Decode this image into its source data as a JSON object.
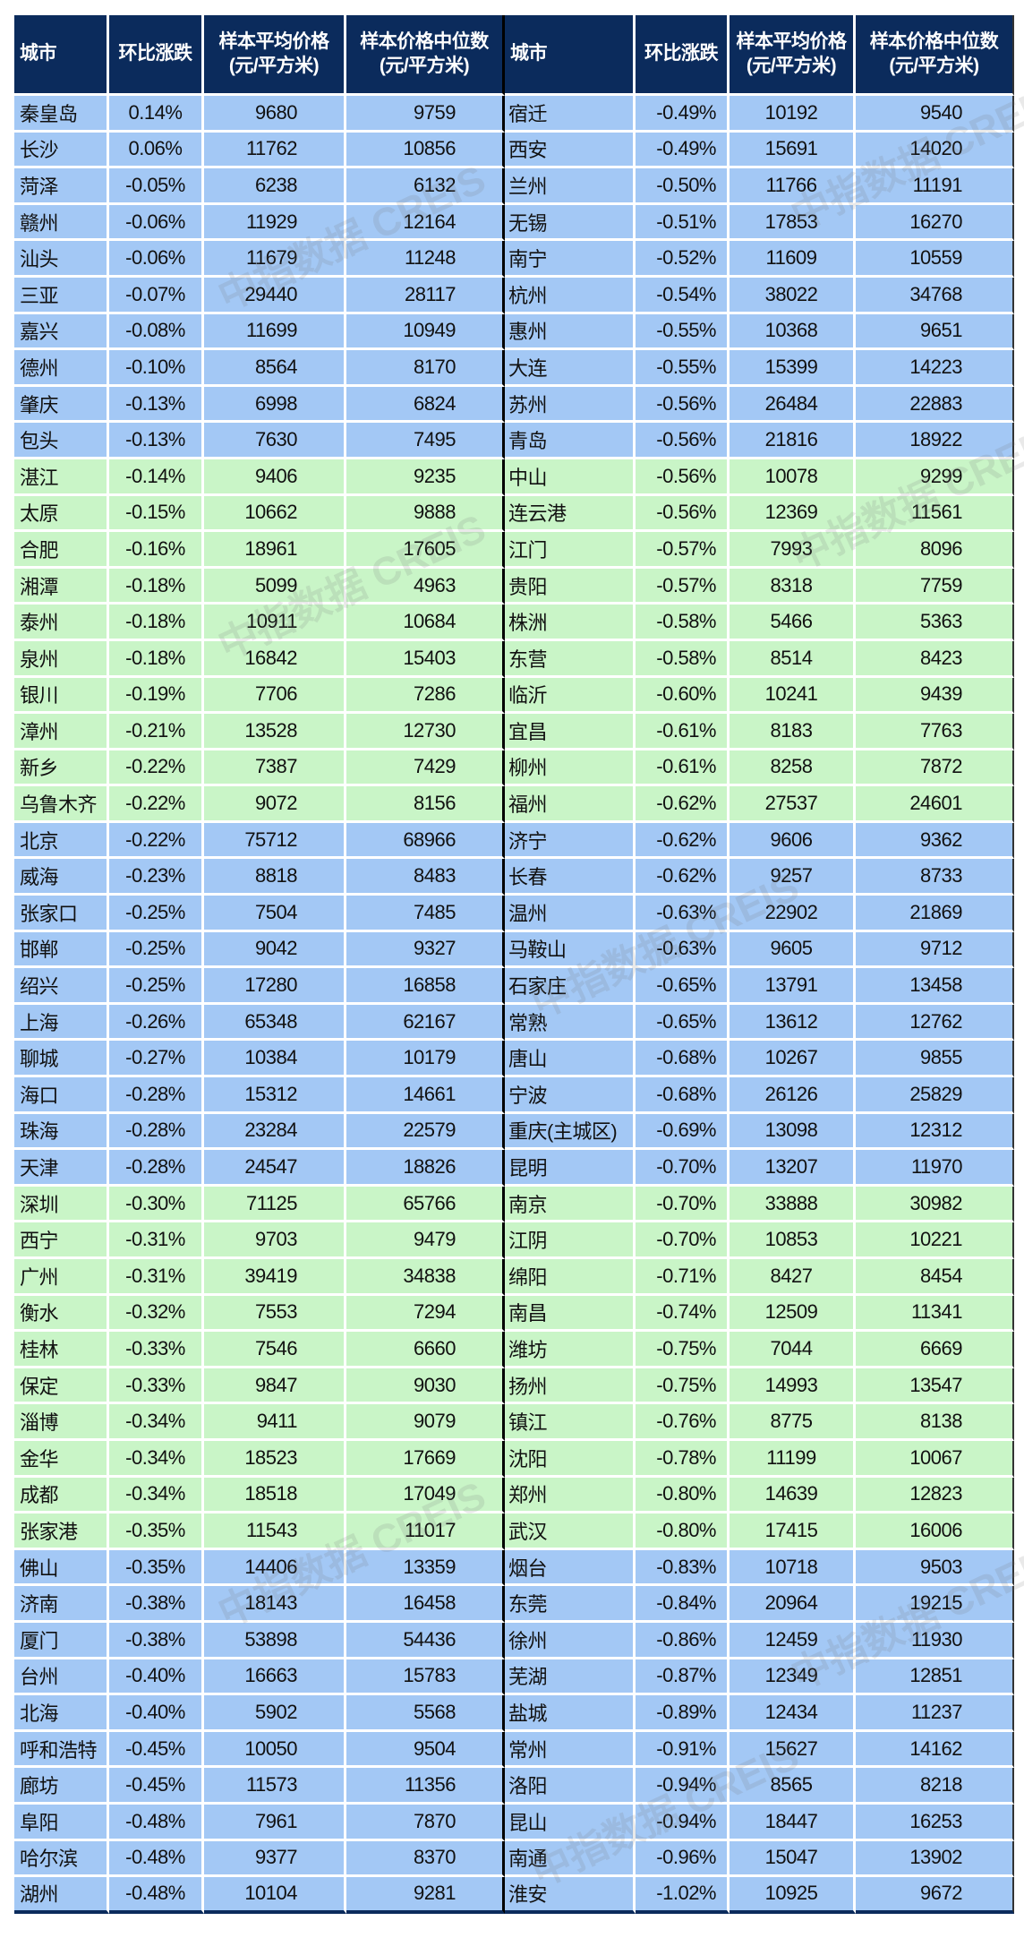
{
  "watermark": "中指数据 CREIS",
  "colors": {
    "header": "#0b2b5c",
    "blue_row": "#a3c8f5",
    "green_row": "#c9f5c7"
  },
  "headers": {
    "city": "城市",
    "change": "环比涨跌",
    "avg_price": [
      "样本平均价格",
      "(元/平方米)"
    ],
    "median_price": [
      "样本价格中位数",
      "(元/平方米)"
    ]
  },
  "left": [
    [
      "秦皇岛",
      "0.14%",
      "9680",
      "9759"
    ],
    [
      "长沙",
      "0.06%",
      "11762",
      "10856"
    ],
    [
      "菏泽",
      "-0.05%",
      "6238",
      "6132"
    ],
    [
      "赣州",
      "-0.06%",
      "11929",
      "12164"
    ],
    [
      "汕头",
      "-0.06%",
      "11679",
      "11248"
    ],
    [
      "三亚",
      "-0.07%",
      "29440",
      "28117"
    ],
    [
      "嘉兴",
      "-0.08%",
      "11699",
      "10949"
    ],
    [
      "德州",
      "-0.10%",
      "8564",
      "8170"
    ],
    [
      "肇庆",
      "-0.13%",
      "6998",
      "6824"
    ],
    [
      "包头",
      "-0.13%",
      "7630",
      "7495"
    ],
    [
      "湛江",
      "-0.14%",
      "9406",
      "9235"
    ],
    [
      "太原",
      "-0.15%",
      "10662",
      "9888"
    ],
    [
      "合肥",
      "-0.16%",
      "18961",
      "17605"
    ],
    [
      "湘潭",
      "-0.18%",
      "5099",
      "4963"
    ],
    [
      "泰州",
      "-0.18%",
      "10911",
      "10684"
    ],
    [
      "泉州",
      "-0.18%",
      "16842",
      "15403"
    ],
    [
      "银川",
      "-0.19%",
      "7706",
      "7286"
    ],
    [
      "漳州",
      "-0.21%",
      "13528",
      "12730"
    ],
    [
      "新乡",
      "-0.22%",
      "7387",
      "7429"
    ],
    [
      "乌鲁木齐",
      "-0.22%",
      "9072",
      "8156"
    ],
    [
      "北京",
      "-0.22%",
      "75712",
      "68966"
    ],
    [
      "威海",
      "-0.23%",
      "8818",
      "8483"
    ],
    [
      "张家口",
      "-0.25%",
      "7504",
      "7485"
    ],
    [
      "邯郸",
      "-0.25%",
      "9042",
      "9327"
    ],
    [
      "绍兴",
      "-0.25%",
      "17280",
      "16858"
    ],
    [
      "上海",
      "-0.26%",
      "65348",
      "62167"
    ],
    [
      "聊城",
      "-0.27%",
      "10384",
      "10179"
    ],
    [
      "海口",
      "-0.28%",
      "15312",
      "14661"
    ],
    [
      "珠海",
      "-0.28%",
      "23284",
      "22579"
    ],
    [
      "天津",
      "-0.28%",
      "24547",
      "18826"
    ],
    [
      "深圳",
      "-0.30%",
      "71125",
      "65766"
    ],
    [
      "西宁",
      "-0.31%",
      "9703",
      "9479"
    ],
    [
      "广州",
      "-0.31%",
      "39419",
      "34838"
    ],
    [
      "衡水",
      "-0.32%",
      "7553",
      "7294"
    ],
    [
      "桂林",
      "-0.33%",
      "7546",
      "6660"
    ],
    [
      "保定",
      "-0.33%",
      "9847",
      "9030"
    ],
    [
      "淄博",
      "-0.34%",
      "9411",
      "9079"
    ],
    [
      "金华",
      "-0.34%",
      "18523",
      "17669"
    ],
    [
      "成都",
      "-0.34%",
      "18518",
      "17049"
    ],
    [
      "张家港",
      "-0.35%",
      "11543",
      "11017"
    ],
    [
      "佛山",
      "-0.35%",
      "14406",
      "13359"
    ],
    [
      "济南",
      "-0.38%",
      "18143",
      "16458"
    ],
    [
      "厦门",
      "-0.38%",
      "53898",
      "54436"
    ],
    [
      "台州",
      "-0.40%",
      "16663",
      "15783"
    ],
    [
      "北海",
      "-0.40%",
      "5902",
      "5568"
    ],
    [
      "呼和浩特",
      "-0.45%",
      "10050",
      "9504"
    ],
    [
      "廊坊",
      "-0.45%",
      "11573",
      "11356"
    ],
    [
      "阜阳",
      "-0.48%",
      "7961",
      "7870"
    ],
    [
      "哈尔滨",
      "-0.48%",
      "9377",
      "8370"
    ],
    [
      "湖州",
      "-0.48%",
      "10104",
      "9281"
    ]
  ],
  "right": [
    [
      "宿迁",
      "-0.49%",
      "10192",
      "9540"
    ],
    [
      "西安",
      "-0.49%",
      "15691",
      "14020"
    ],
    [
      "兰州",
      "-0.50%",
      "11766",
      "11191"
    ],
    [
      "无锡",
      "-0.51%",
      "17853",
      "16270"
    ],
    [
      "南宁",
      "-0.52%",
      "11609",
      "10559"
    ],
    [
      "杭州",
      "-0.54%",
      "38022",
      "34768"
    ],
    [
      "惠州",
      "-0.55%",
      "10368",
      "9651"
    ],
    [
      "大连",
      "-0.55%",
      "15399",
      "14223"
    ],
    [
      "苏州",
      "-0.56%",
      "26484",
      "22883"
    ],
    [
      "青岛",
      "-0.56%",
      "21816",
      "18922"
    ],
    [
      "中山",
      "-0.56%",
      "10078",
      "9299"
    ],
    [
      "连云港",
      "-0.56%",
      "12369",
      "11561"
    ],
    [
      "江门",
      "-0.57%",
      "7993",
      "8096"
    ],
    [
      "贵阳",
      "-0.57%",
      "8318",
      "7759"
    ],
    [
      "株洲",
      "-0.58%",
      "5466",
      "5363"
    ],
    [
      "东营",
      "-0.58%",
      "8514",
      "8423"
    ],
    [
      "临沂",
      "-0.60%",
      "10241",
      "9439"
    ],
    [
      "宜昌",
      "-0.61%",
      "8183",
      "7763"
    ],
    [
      "柳州",
      "-0.61%",
      "8258",
      "7872"
    ],
    [
      "福州",
      "-0.62%",
      "27537",
      "24601"
    ],
    [
      "济宁",
      "-0.62%",
      "9606",
      "9362"
    ],
    [
      "长春",
      "-0.62%",
      "9257",
      "8733"
    ],
    [
      "温州",
      "-0.63%",
      "22902",
      "21869"
    ],
    [
      "马鞍山",
      "-0.63%",
      "9605",
      "9712"
    ],
    [
      "石家庄",
      "-0.65%",
      "13791",
      "13458"
    ],
    [
      "常熟",
      "-0.65%",
      "13612",
      "12762"
    ],
    [
      "唐山",
      "-0.68%",
      "10267",
      "9855"
    ],
    [
      "宁波",
      "-0.68%",
      "26126",
      "25829"
    ],
    [
      "重庆(主城区)",
      "-0.69%",
      "13098",
      "12312"
    ],
    [
      "昆明",
      "-0.70%",
      "13207",
      "11970"
    ],
    [
      "南京",
      "-0.70%",
      "33888",
      "30982"
    ],
    [
      "江阴",
      "-0.70%",
      "10853",
      "10221"
    ],
    [
      "绵阳",
      "-0.71%",
      "8427",
      "8454"
    ],
    [
      "南昌",
      "-0.74%",
      "12509",
      "11341"
    ],
    [
      "潍坊",
      "-0.75%",
      "7044",
      "6669"
    ],
    [
      "扬州",
      "-0.75%",
      "14993",
      "13547"
    ],
    [
      "镇江",
      "-0.76%",
      "8775",
      "8138"
    ],
    [
      "沈阳",
      "-0.78%",
      "11199",
      "10067"
    ],
    [
      "郑州",
      "-0.80%",
      "14639",
      "12823"
    ],
    [
      "武汉",
      "-0.80%",
      "17415",
      "16006"
    ],
    [
      "烟台",
      "-0.83%",
      "10718",
      "9503"
    ],
    [
      "东莞",
      "-0.84%",
      "20964",
      "19215"
    ],
    [
      "徐州",
      "-0.86%",
      "12459",
      "11930"
    ],
    [
      "芜湖",
      "-0.87%",
      "12349",
      "12851"
    ],
    [
      "盐城",
      "-0.89%",
      "12434",
      "11237"
    ],
    [
      "常州",
      "-0.91%",
      "15627",
      "14162"
    ],
    [
      "洛阳",
      "-0.94%",
      "8565",
      "8218"
    ],
    [
      "昆山",
      "-0.94%",
      "18447",
      "16253"
    ],
    [
      "南通",
      "-0.96%",
      "15047",
      "13902"
    ],
    [
      "淮安",
      "-1.02%",
      "10925",
      "9672"
    ]
  ]
}
